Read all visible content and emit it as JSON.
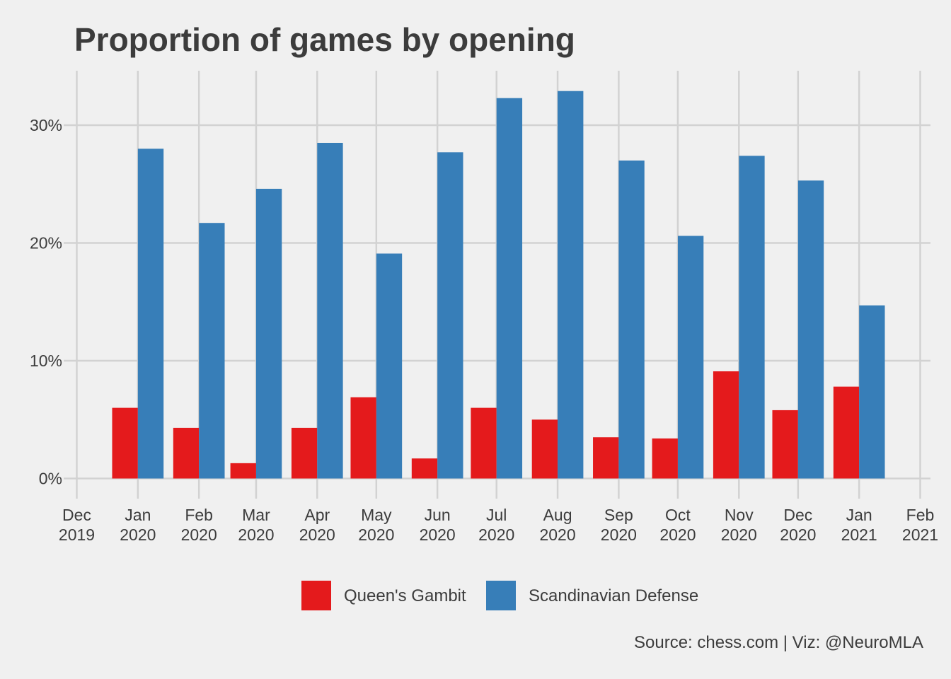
{
  "chart_data": {
    "type": "bar",
    "title": "Proportion of games by opening",
    "caption": "Source: chess.com | Viz: @NeuroMLA",
    "xlabel": "",
    "ylabel": "",
    "ylim": [
      0,
      34.5
    ],
    "x_ticks": [
      {
        "date": "2019-12-01",
        "line1": "Dec",
        "line2": "2019"
      },
      {
        "date": "2020-01-01",
        "line1": "Jan",
        "line2": "2020"
      },
      {
        "date": "2020-02-01",
        "line1": "Feb",
        "line2": "2020"
      },
      {
        "date": "2020-03-01",
        "line1": "Mar",
        "line2": "2020"
      },
      {
        "date": "2020-04-01",
        "line1": "Apr",
        "line2": "2020"
      },
      {
        "date": "2020-05-01",
        "line1": "May",
        "line2": "2020"
      },
      {
        "date": "2020-06-01",
        "line1": "Jun",
        "line2": "2020"
      },
      {
        "date": "2020-07-01",
        "line1": "Jul",
        "line2": "2020"
      },
      {
        "date": "2020-08-01",
        "line1": "Aug",
        "line2": "2020"
      },
      {
        "date": "2020-09-01",
        "line1": "Sep",
        "line2": "2020"
      },
      {
        "date": "2020-10-01",
        "line1": "Oct",
        "line2": "2020"
      },
      {
        "date": "2020-11-01",
        "line1": "Nov",
        "line2": "2020"
      },
      {
        "date": "2020-12-01",
        "line1": "Dec",
        "line2": "2020"
      },
      {
        "date": "2021-01-01",
        "line1": "Jan",
        "line2": "2021"
      },
      {
        "date": "2021-02-01",
        "line1": "Feb",
        "line2": "2021"
      }
    ],
    "y_ticks": [
      {
        "value": 0,
        "label": "0%"
      },
      {
        "value": 10,
        "label": "10%"
      },
      {
        "value": 20,
        "label": "20%"
      },
      {
        "value": 30,
        "label": "30%"
      }
    ],
    "x": [
      "2020-01-01",
      "2020-02-01",
      "2020-03-01",
      "2020-04-01",
      "2020-05-01",
      "2020-06-01",
      "2020-07-01",
      "2020-08-01",
      "2020-09-01",
      "2020-10-01",
      "2020-11-01",
      "2020-12-01",
      "2021-01-01"
    ],
    "series": [
      {
        "name": "Queen's Gambit",
        "color": "#e41a1c",
        "values": [
          6.0,
          4.3,
          1.3,
          4.3,
          6.9,
          1.7,
          6.0,
          5.0,
          3.5,
          3.4,
          9.1,
          5.8,
          7.8
        ]
      },
      {
        "name": "Scandinavian Defense",
        "color": "#377eb8",
        "values": [
          28.0,
          21.7,
          24.6,
          28.5,
          19.1,
          27.7,
          32.3,
          32.9,
          27.0,
          20.6,
          27.4,
          25.3,
          14.7
        ]
      }
    ],
    "grid": true,
    "legend_position": "bottom"
  }
}
